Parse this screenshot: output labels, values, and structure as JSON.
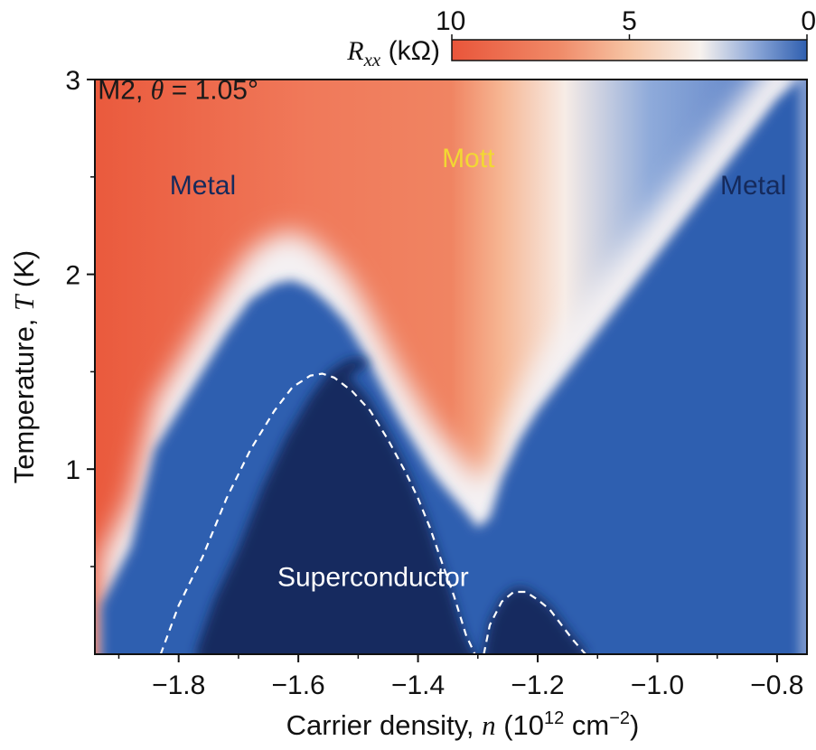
{
  "chart_data": {
    "type": "heatmap",
    "title": "",
    "xlabel": "Carrier density, n (10^12 cm^-2)",
    "xlabel_parts": {
      "prefix": "Carrier density, ",
      "var": "n",
      "mid": " (10",
      "sup1": "12",
      "unit": " cm",
      "sup2": "−2",
      "suffix": ")"
    },
    "ylabel": "Temperature, T (K)",
    "ylabel_parts": {
      "prefix": "Temperature, ",
      "var": "T",
      "suffix": " (K)"
    },
    "xlim": [
      -1.94,
      -0.75
    ],
    "ylim": [
      0.05,
      3.0
    ],
    "x_ticks": [
      -1.8,
      -1.6,
      -1.4,
      -1.2,
      -1.0,
      -0.8
    ],
    "x_tick_labels": [
      "−1.8",
      "−1.6",
      "−1.4",
      "−1.2",
      "−1.0",
      "−0.8"
    ],
    "y_ticks": [
      1,
      2,
      3
    ],
    "y_tick_labels": [
      "1",
      "2",
      "3"
    ],
    "colorbar": {
      "label": "Rxx (kΩ)",
      "label_parts": {
        "var": "R",
        "sub": "xx",
        "unit": " (kΩ)"
      },
      "range": [
        10,
        0
      ],
      "ticks": [
        10,
        5,
        0
      ],
      "tick_labels": [
        "10",
        "5",
        "0"
      ],
      "colors": [
        "#e9553a",
        "#f6c4a4",
        "#f7f2ee",
        "#2f5fb0",
        "#142a5e"
      ]
    },
    "tc_boundary_n": [
      -1.93,
      -1.88,
      -1.84,
      -1.8,
      -1.76,
      -1.72,
      -1.68,
      -1.64,
      -1.61,
      -1.58,
      -1.55,
      -1.52,
      -1.49,
      -1.46,
      -1.43,
      -1.4,
      -1.38,
      -1.36,
      -1.34,
      -1.32,
      -1.3,
      -1.28,
      -1.26,
      -1.23,
      -1.2,
      -1.15,
      -1.1,
      -1.05,
      -1.0,
      -0.95,
      -0.9,
      -0.85,
      -0.8,
      -0.76
    ],
    "tc_boundary_T": [
      0.3,
      0.6,
      1.1,
      1.3,
      1.5,
      1.7,
      1.87,
      1.95,
      1.97,
      1.93,
      1.85,
      1.75,
      1.6,
      1.42,
      1.25,
      1.1,
      1.0,
      0.92,
      0.85,
      0.78,
      0.7,
      0.75,
      0.95,
      1.15,
      1.3,
      1.5,
      1.7,
      1.9,
      2.1,
      2.3,
      2.5,
      2.7,
      2.9,
      3.0
    ],
    "sc_dome_1": {
      "n": [
        -1.83,
        -1.8,
        -1.76,
        -1.72,
        -1.68,
        -1.64,
        -1.61,
        -1.58,
        -1.56,
        -1.54,
        -1.51,
        -1.48,
        -1.45,
        -1.42,
        -1.4,
        -1.38,
        -1.36,
        -1.34,
        -1.32,
        -1.305
      ],
      "T": [
        0.05,
        0.3,
        0.55,
        0.85,
        1.1,
        1.3,
        1.42,
        1.48,
        1.49,
        1.47,
        1.4,
        1.3,
        1.15,
        0.98,
        0.85,
        0.7,
        0.52,
        0.35,
        0.15,
        0.05
      ]
    },
    "sc_dome_2": {
      "n": [
        -1.29,
        -1.28,
        -1.26,
        -1.24,
        -1.22,
        -1.2,
        -1.18,
        -1.16,
        -1.14,
        -1.12
      ],
      "T": [
        0.05,
        0.2,
        0.32,
        0.37,
        0.37,
        0.33,
        0.28,
        0.2,
        0.12,
        0.05
      ]
    },
    "annotations": [
      {
        "text": "M2, θ = 1.05°",
        "parts": {
          "pre": "M2, ",
          "sym": "θ",
          "post": " = 1.05°"
        },
        "n": -1.935,
        "T": 2.9,
        "color": "#1a1a1a"
      },
      {
        "text": "Metal",
        "n": -1.815,
        "T": 2.41,
        "color": "#152a5c"
      },
      {
        "text": "Mott",
        "n": -1.36,
        "T": 2.55,
        "color": "#f2d833"
      },
      {
        "text": "Metal",
        "n": -0.895,
        "T": 2.41,
        "color": "#152a5c"
      },
      {
        "text": "Superconductor",
        "n": -1.635,
        "T": 0.4,
        "color": "#ffffff"
      }
    ]
  }
}
